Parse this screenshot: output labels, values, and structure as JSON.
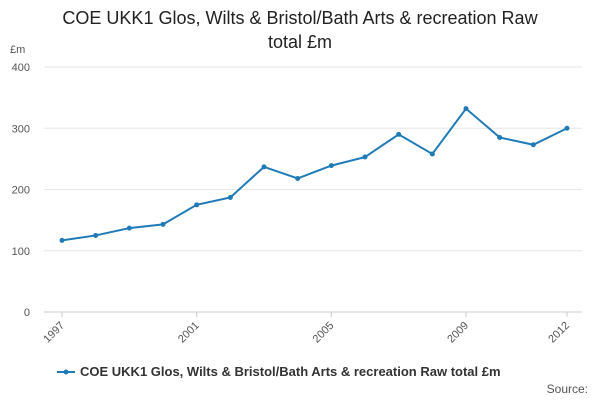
{
  "chart_data": {
    "type": "line",
    "title": "COE UKK1 Glos, Wilts & Bristol/Bath Arts & recreation Raw total £m",
    "title_lines": [
      "COE UKK1 Glos, Wilts & Bristol/Bath Arts & recreation Raw",
      "total £m"
    ],
    "ylabel": "£m",
    "xlabel": "",
    "ylim": [
      0,
      400
    ],
    "yticks": [
      0,
      100,
      200,
      300,
      400
    ],
    "xticks": [
      1997,
      2001,
      2005,
      2009,
      2012
    ],
    "grid": true,
    "legend_position": "bottom",
    "series": [
      {
        "name": "COE UKK1 Glos, Wilts & Bristol/Bath Arts & recreation Raw total £m",
        "color": "#1f7ab8",
        "x": [
          1997,
          1998,
          1999,
          2000,
          2001,
          2002,
          2003,
          2004,
          2005,
          2006,
          2007,
          2008,
          2009,
          2010,
          2011,
          2012
        ],
        "values": [
          117,
          125,
          137,
          143,
          175,
          187,
          237,
          218,
          239,
          253,
          290,
          258,
          332,
          285,
          273,
          300
        ]
      }
    ]
  },
  "source_label": "Source:"
}
